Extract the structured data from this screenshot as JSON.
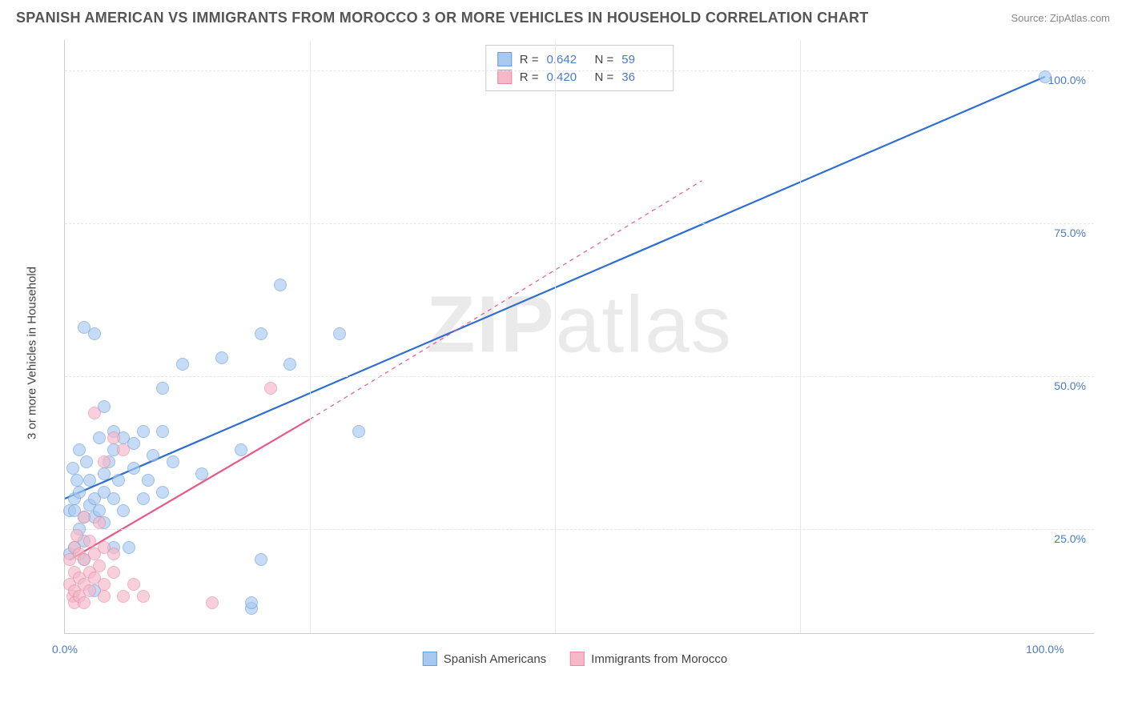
{
  "header": {
    "title": "SPANISH AMERICAN VS IMMIGRANTS FROM MOROCCO 3 OR MORE VEHICLES IN HOUSEHOLD CORRELATION CHART",
    "source": "Source: ZipAtlas.com"
  },
  "watermark": {
    "left": "ZIP",
    "right": "atlas"
  },
  "chart": {
    "type": "scatter",
    "ylabel": "3 or more Vehicles in Household",
    "xlim": [
      0,
      105
    ],
    "ylim": [
      8,
      105
    ],
    "ytick_percents": [
      25.0,
      50.0,
      75.0,
      100.0
    ],
    "ytick_labels": [
      "25.0%",
      "50.0%",
      "75.0%",
      "100.0%"
    ],
    "xtick_percents": [
      0.0,
      100.0
    ],
    "xtick_labels": [
      "0.0%",
      "100.0%"
    ],
    "x_minor_ticks": [
      25,
      50,
      75
    ],
    "background_color": "#ffffff",
    "grid_color": "#e5e5e5",
    "series": [
      {
        "name": "Spanish Americans",
        "fill": "#a8c8f0",
        "stroke": "#6a9ed8",
        "line_color": "#2f6fd0",
        "r": 0.642,
        "n": 59,
        "trend": {
          "x1": 0,
          "y1": 30,
          "x2": 100,
          "y2": 99
        },
        "trend_dash": null,
        "points": [
          [
            0.5,
            21
          ],
          [
            0.5,
            28
          ],
          [
            0.8,
            35
          ],
          [
            1,
            28
          ],
          [
            1,
            22
          ],
          [
            1,
            30
          ],
          [
            1.2,
            33
          ],
          [
            1.5,
            25
          ],
          [
            1.5,
            31
          ],
          [
            1.5,
            38
          ],
          [
            2,
            58
          ],
          [
            2,
            27
          ],
          [
            2,
            23
          ],
          [
            2,
            20
          ],
          [
            2.2,
            36
          ],
          [
            2.5,
            29
          ],
          [
            2.5,
            33
          ],
          [
            3,
            57
          ],
          [
            3,
            30
          ],
          [
            3,
            27
          ],
          [
            3,
            15
          ],
          [
            3.5,
            40
          ],
          [
            3.5,
            28
          ],
          [
            4,
            45
          ],
          [
            4,
            34
          ],
          [
            4,
            31
          ],
          [
            4,
            26
          ],
          [
            4.5,
            36
          ],
          [
            5,
            41
          ],
          [
            5,
            38
          ],
          [
            5,
            30
          ],
          [
            5,
            22
          ],
          [
            5.5,
            33
          ],
          [
            6,
            40
          ],
          [
            6,
            28
          ],
          [
            6.5,
            22
          ],
          [
            7,
            39
          ],
          [
            7,
            35
          ],
          [
            8,
            41
          ],
          [
            8,
            30
          ],
          [
            8.5,
            33
          ],
          [
            9,
            37
          ],
          [
            10,
            41
          ],
          [
            10,
            48
          ],
          [
            10,
            31
          ],
          [
            11,
            36
          ],
          [
            12,
            52
          ],
          [
            14,
            34
          ],
          [
            16,
            53
          ],
          [
            18,
            38
          ],
          [
            19,
            12
          ],
          [
            19,
            13
          ],
          [
            20,
            57
          ],
          [
            20,
            20
          ],
          [
            22,
            65
          ],
          [
            23,
            52
          ],
          [
            28,
            57
          ],
          [
            30,
            41
          ],
          [
            100,
            99
          ]
        ]
      },
      {
        "name": "Immigrants from Morocco",
        "fill": "#f5b8c8",
        "stroke": "#e88aa5",
        "line_color": "#e65a8a",
        "r": 0.42,
        "n": 36,
        "trend": {
          "x1": 0.5,
          "y1": 20,
          "x2": 25,
          "y2": 43
        },
        "trend_dash": {
          "x1": 25,
          "y1": 43,
          "x2": 65,
          "y2": 82
        },
        "points": [
          [
            0.5,
            20
          ],
          [
            0.5,
            16
          ],
          [
            0.8,
            14
          ],
          [
            1,
            22
          ],
          [
            1,
            18
          ],
          [
            1,
            15
          ],
          [
            1,
            13
          ],
          [
            1.2,
            24
          ],
          [
            1.5,
            21
          ],
          [
            1.5,
            17
          ],
          [
            1.5,
            14
          ],
          [
            2,
            27
          ],
          [
            2,
            20
          ],
          [
            2,
            16
          ],
          [
            2,
            13
          ],
          [
            2.5,
            23
          ],
          [
            2.5,
            18
          ],
          [
            2.5,
            15
          ],
          [
            3,
            21
          ],
          [
            3,
            17
          ],
          [
            3,
            44
          ],
          [
            3.5,
            26
          ],
          [
            3.5,
            19
          ],
          [
            4,
            36
          ],
          [
            4,
            22
          ],
          [
            4,
            16
          ],
          [
            4,
            14
          ],
          [
            5,
            40
          ],
          [
            5,
            21
          ],
          [
            5,
            18
          ],
          [
            6,
            38
          ],
          [
            6,
            14
          ],
          [
            7,
            16
          ],
          [
            8,
            14
          ],
          [
            15,
            13
          ],
          [
            21,
            48
          ]
        ]
      }
    ]
  },
  "legend_top": {
    "r_label": "R =",
    "n_label": "N ="
  }
}
